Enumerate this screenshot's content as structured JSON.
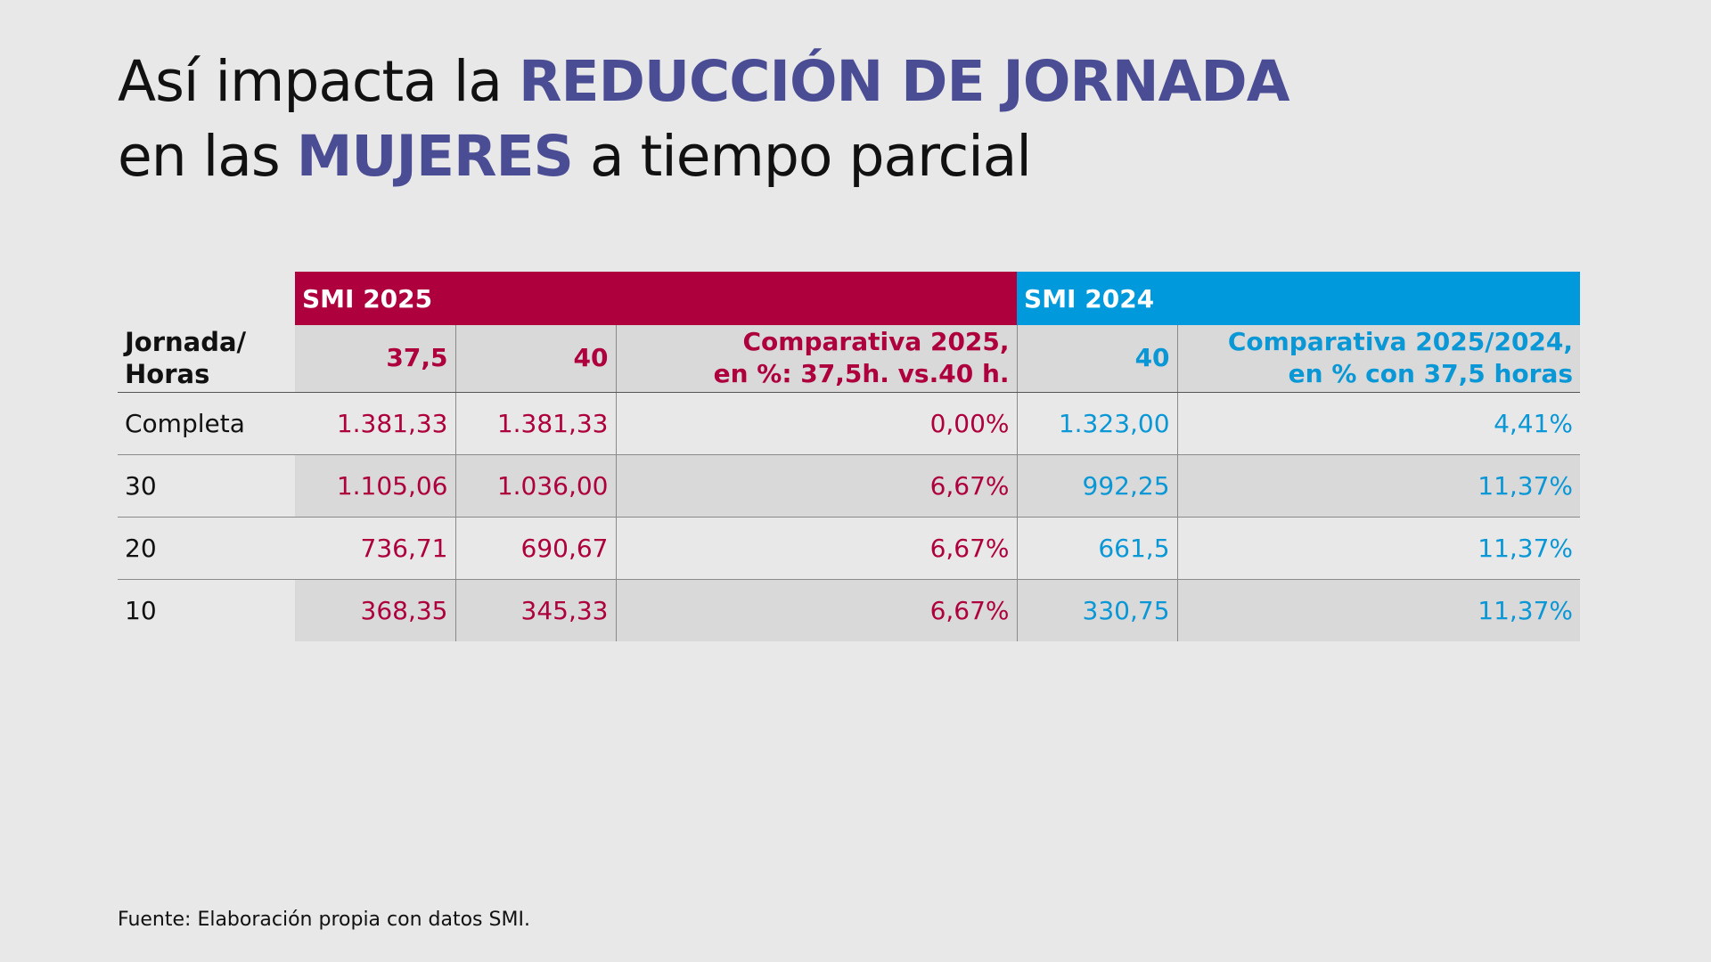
{
  "title": {
    "line1_prefix": "Así impacta la ",
    "line1_highlight": "REDUCCIÓN DE JORNADA",
    "line2_prefix": "en las ",
    "line2_highlight": "MUJERES",
    "line2_suffix": " a tiempo parcial"
  },
  "colors": {
    "highlight": "#4a4d94",
    "smi_2025": "#ad003c",
    "smi_2024": "#0099db",
    "background": "#e8e8e8",
    "shade": "#d9d9d9"
  },
  "source": "Fuente: Elaboración propia con datos SMI.",
  "chart_data": {
    "type": "table",
    "groups": [
      {
        "label": "SMI 2025",
        "columns": 3
      },
      {
        "label": "SMI 2024",
        "columns": 2
      }
    ],
    "row_header": [
      "Jornada/",
      "Horas"
    ],
    "columns": [
      {
        "group": "SMI 2025",
        "lines": [
          "37,5"
        ]
      },
      {
        "group": "SMI 2025",
        "lines": [
          "40"
        ]
      },
      {
        "group": "SMI 2025",
        "lines": [
          "Comparativa 2025,",
          "en %: 37,5h. vs.40 h."
        ]
      },
      {
        "group": "SMI 2024",
        "lines": [
          "40"
        ]
      },
      {
        "group": "SMI 2024",
        "lines": [
          "Comparativa 2025/2024,",
          "en % con 37,5 horas"
        ]
      }
    ],
    "rows": [
      {
        "hours": "Completa",
        "values": [
          "1.381,33",
          "1.381,33",
          "0,00%",
          "1.323,00",
          "4,41%"
        ]
      },
      {
        "hours": "30",
        "values": [
          "1.105,06",
          "1.036,00",
          "6,67%",
          "992,25",
          "11,37%"
        ]
      },
      {
        "hours": "20",
        "values": [
          "736,71",
          "690,67",
          "6,67%",
          "661,5",
          "11,37%"
        ]
      },
      {
        "hours": "10",
        "values": [
          "368,35",
          "345,33",
          "6,67%",
          "330,75",
          "11,37%"
        ]
      }
    ],
    "shaded_rows": [
      "30",
      "10"
    ]
  }
}
